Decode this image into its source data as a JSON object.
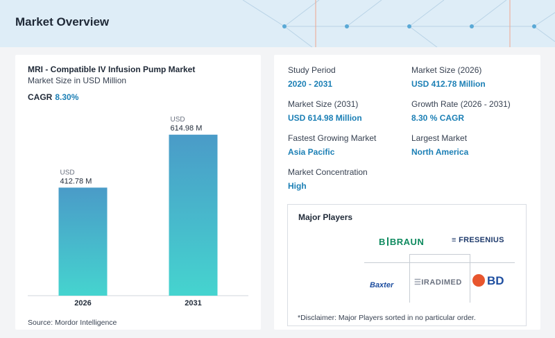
{
  "header": {
    "title": "Market Overview"
  },
  "chart_data": {
    "type": "bar",
    "title": "MRI - Compatible IV Infusion Pump Market",
    "subtitle": "Market Size in USD Million",
    "categories": [
      "2026",
      "2031"
    ],
    "values": [
      412.78,
      614.98
    ],
    "value_labels": [
      "412.78 M",
      "614.98 M"
    ],
    "unit_label": "USD",
    "ylim": [
      0,
      700
    ],
    "grid": false,
    "colors": {
      "top": "#4a9bc8",
      "bottom": "#45d4cf"
    }
  },
  "cagr": {
    "label": "CAGR",
    "value": "8.30%"
  },
  "source": "Source: Mordor Intelligence",
  "stats": {
    "study_period": {
      "label": "Study Period",
      "value": "2020 - 2031"
    },
    "market_size_2026": {
      "label": "Market Size (2026)",
      "value": "USD 412.78 Million"
    },
    "market_size_2031": {
      "label": "Market Size (2031)",
      "value": "USD 614.98 Million"
    },
    "growth_rate": {
      "label": "Growth Rate (2026 - 2031)",
      "value": "8.30 % CAGR"
    },
    "fastest_growing": {
      "label": "Fastest Growing Market",
      "value": "Asia Pacific"
    },
    "largest_market": {
      "label": "Largest Market",
      "value": "North America"
    },
    "concentration": {
      "label": "Market Concentration",
      "value": "High"
    }
  },
  "players": {
    "title": "Major Players",
    "logos": [
      "B|BRAUN",
      "FRESENIUS",
      "Baxter",
      "IRADIMED",
      "BD"
    ],
    "disclaimer": "*Disclaimer: Major Players sorted in no particular order."
  },
  "colors": {
    "accent": "#1b7fb5",
    "header_bg": "#deedf7"
  }
}
